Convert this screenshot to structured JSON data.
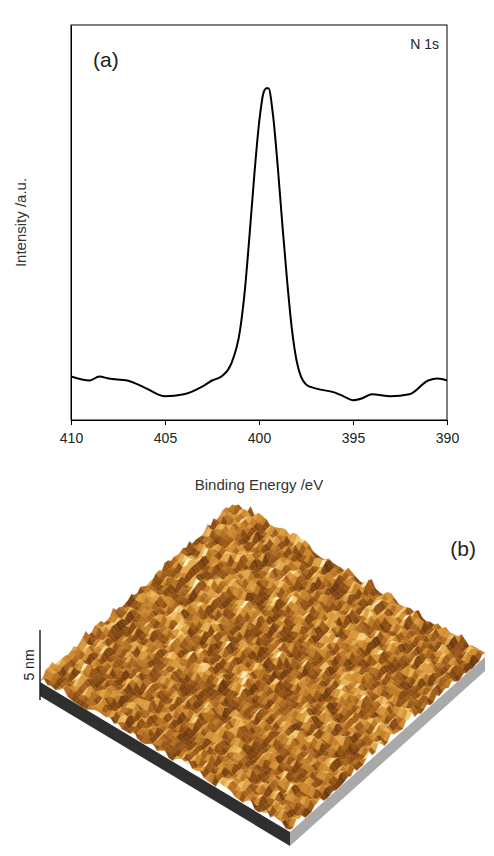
{
  "chart_data": [
    {
      "type": "line",
      "panel": "(a)",
      "title": "N 1s",
      "x_label": "Binding Energy /eV",
      "y_label": "Intensity /a.u.",
      "x": [
        410,
        409,
        408.5,
        408,
        407,
        406,
        405,
        404,
        403,
        402.5,
        402,
        401.5,
        401,
        400.75,
        400.5,
        400.25,
        400,
        399.75,
        399.6,
        399.5,
        399.25,
        399,
        398.75,
        398.5,
        398.25,
        398,
        397.5,
        397,
        396,
        395.5,
        395,
        394.5,
        394,
        393,
        392,
        391,
        390.5,
        390
      ],
      "values": [
        11,
        10,
        11,
        10.5,
        10,
        8,
        6,
        6.5,
        8.5,
        10,
        11,
        14,
        23,
        33,
        47,
        62,
        75,
        83,
        84,
        84,
        77,
        64,
        49,
        35,
        23,
        15,
        9,
        8,
        7,
        6,
        5,
        5.5,
        6.5,
        6,
        6.5,
        10,
        10.5,
        10
      ],
      "color": "#000000",
      "xlim": [
        410,
        390
      ],
      "xticks": [
        410,
        405,
        400,
        395,
        390
      ],
      "ylim": [
        0,
        100
      ],
      "tick_labels": "x"
    },
    {
      "type": "surface",
      "panel": "(b)",
      "scale_bar": {
        "value": 5,
        "label": "5 nm"
      }
    }
  ]
}
